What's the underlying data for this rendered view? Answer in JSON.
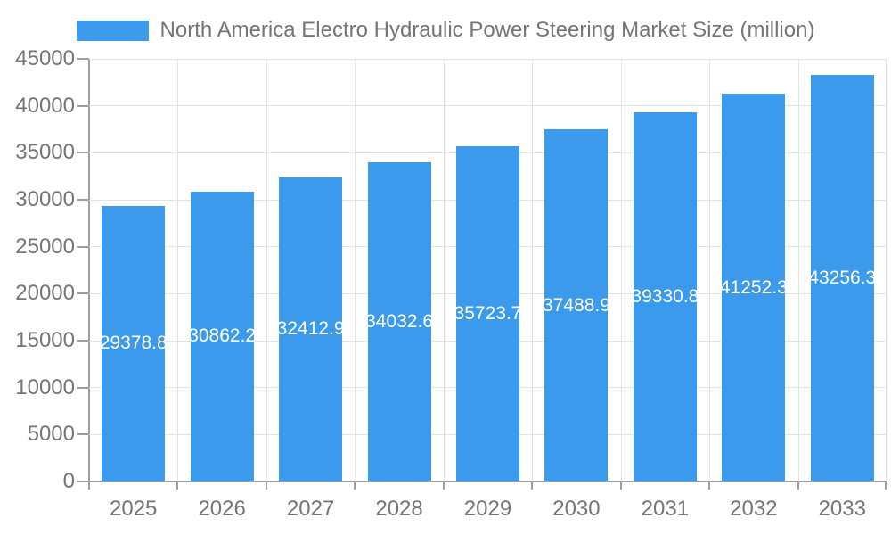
{
  "legend": {
    "label": "North America Electro Hydraulic Power Steering Market Size (million)"
  },
  "colors": {
    "bar": "#3C9AEC",
    "bar_label": "#FFFFFF",
    "legend_text": "#757575",
    "axis_text": "#757575",
    "grid_line": "#E3E3E3",
    "axis_line": "#9E9E9E",
    "background": "#FFFFFF"
  },
  "chart_data": {
    "type": "bar",
    "title": "North America Electro Hydraulic Power Steering Market Size (million)",
    "categories": [
      "2025",
      "2026",
      "2027",
      "2028",
      "2029",
      "2030",
      "2031",
      "2032",
      "2033"
    ],
    "values": [
      29378.8,
      30862.2,
      32412.9,
      34032.6,
      35723.7,
      37488.9,
      39330.8,
      41252.3,
      43256.3
    ],
    "series": [
      {
        "name": "North America Electro Hydraulic Power Steering Market Size (million)",
        "values": [
          29378.8,
          30862.2,
          32412.9,
          34032.6,
          35723.7,
          37488.9,
          39330.8,
          41252.3,
          43256.3
        ]
      }
    ],
    "xlabel": "",
    "ylabel": "",
    "ylim": [
      0,
      45000
    ],
    "ytick_step": 5000,
    "yticks": [
      0,
      5000,
      10000,
      15000,
      20000,
      25000,
      30000,
      35000,
      40000,
      45000
    ],
    "grid": true,
    "legend_position": "top",
    "data_label_position": "inside-center",
    "data_label_decimals": 1
  }
}
